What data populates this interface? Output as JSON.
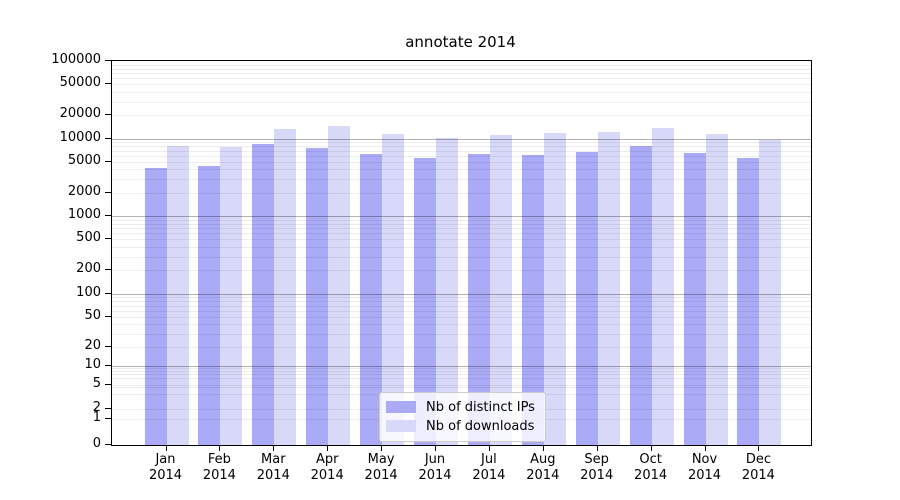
{
  "figure": {
    "title": "annotate 2014"
  },
  "chart_data": {
    "type": "bar",
    "title": "annotate 2014",
    "categories": [
      "Jan 2014",
      "Feb 2014",
      "Mar 2014",
      "Apr 2014",
      "May 2014",
      "Jun 2014",
      "Jul 2014",
      "Aug 2014",
      "Sep 2014",
      "Oct 2014",
      "Nov 2014",
      "Dec 2014"
    ],
    "series": [
      {
        "name": "Nb of distinct IPs",
        "color": "#aaaaf7",
        "values": [
          4200,
          4450,
          8400,
          7600,
          6400,
          5650,
          6350,
          6200,
          6700,
          7950,
          6500,
          5650
        ]
      },
      {
        "name": "Nb of downloads",
        "color": "#d8d8f9",
        "values": [
          8000,
          7800,
          13200,
          14500,
          11600,
          10250,
          11250,
          11850,
          12100,
          13800,
          11600,
          9600
        ]
      }
    ],
    "xlabel": "",
    "ylabel": "",
    "yscale": "symlog",
    "ylim": [
      0,
      100000
    ],
    "yticks": [
      0,
      1,
      2,
      5,
      10,
      20,
      50,
      100,
      200,
      500,
      1000,
      2000,
      5000,
      10000,
      20000,
      50000,
      100000
    ],
    "grid": "horizontal major (decades, darker) + minor (log subdivisions, faint)",
    "legend_position": "lower center inside plot",
    "background_color": "#ffffff",
    "spine_color": "#000000"
  }
}
